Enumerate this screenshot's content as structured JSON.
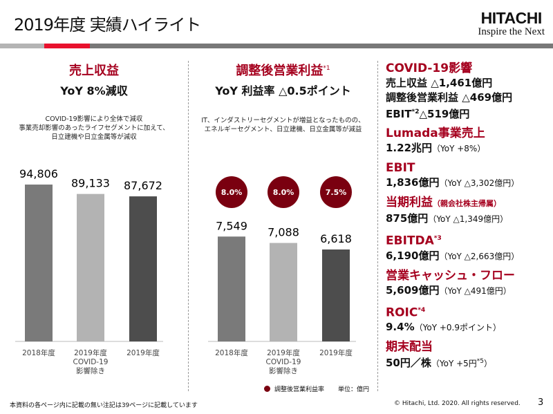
{
  "header": {
    "title": "2019年度 実績ハイライト",
    "logo_brand": "HITACHI",
    "logo_tagline": "Inspire the Next"
  },
  "colors": {
    "accent": "#a5001e",
    "red_bar": "#e8112d",
    "bar_2018": "#7a7a7a",
    "bar_covid": "#b3b3b3",
    "bar_2019": "#4d4d4d",
    "circle": "#7a0010"
  },
  "left_panel": {
    "heading": "売上収益",
    "subheading": "YoY 8%減収",
    "note": [
      "COVID-19影響により全体で減収",
      "事業売却影響のあったライフセグメントに加えて、",
      "日立建機や日立金属等が減収"
    ]
  },
  "mid_panel": {
    "heading": "調整後営業利益",
    "heading_sup": "*1",
    "subheading": "YoY 利益率 △0.5ポイント",
    "note": [
      "IT、インダストリーセグメントが増益となったものの、",
      "エネルギーセグメント、日立建機、日立金属等が減益"
    ],
    "legend_label": "調整後営業利益率",
    "unit": "単位：億円"
  },
  "chart_data": [
    {
      "type": "bar",
      "categories": [
        "2018年度",
        "2019年度\nCOVID-19\n影響除き",
        "2019年度"
      ],
      "values": [
        94806,
        89133,
        87672
      ],
      "value_labels": [
        "94,806",
        "89,133",
        "87,672"
      ],
      "ylim": [
        0,
        100000
      ],
      "grid": false
    },
    {
      "type": "bar",
      "categories": [
        "2018年度",
        "2019年度\nCOVID-19\n影響除き",
        "2019年度"
      ],
      "values": [
        7549,
        7088,
        6618
      ],
      "value_labels": [
        "7,549",
        "7,088",
        "6,618"
      ],
      "margin_labels": [
        "8.0%",
        "8.0%",
        "7.5%"
      ],
      "ylim": [
        0,
        10000
      ],
      "grid": false
    }
  ],
  "kpis": [
    {
      "title": "COVID-19影響",
      "lines": [
        "売上収益 △1,461億円",
        "調整後営業利益 △469億円"
      ],
      "ebit_line": {
        "a": "EBIT",
        "sup": "*2",
        "b": "△519億円"
      }
    },
    {
      "title": "Lumada事業売上",
      "value": "1.22兆円",
      "yoy": "（YoY +8%）"
    },
    {
      "title": "EBIT",
      "value": "1,836億円",
      "yoy": "（YoY △3,302億円）"
    },
    {
      "title": "当期利益",
      "title_small": "（親会社株主帰属）",
      "value": "875億円",
      "yoy": "（YoY △1,349億円）"
    },
    {
      "title": "EBITDA",
      "sup": "*3",
      "value": "6,190億円",
      "yoy": "（YoY △2,663億円）"
    },
    {
      "title": "営業キャッシュ・フロー",
      "value": "5,609億円",
      "yoy": "（YoY △491億円）"
    },
    {
      "title": "ROIC",
      "sup": "*4",
      "value": "9.4%",
      "yoy": "（YoY +0.9ポイント）"
    },
    {
      "title": "期末配当",
      "value": "50円／株",
      "yoy": "（YoY +5円",
      "yoy_sup": "*5",
      "yoy_end": "）"
    }
  ],
  "footer": {
    "note": "本資料の各ページ内に記載の無い注記は39ページに記載しています",
    "copyright": "© Hitachi, Ltd. 2020. All rights reserved.",
    "page": "3"
  }
}
